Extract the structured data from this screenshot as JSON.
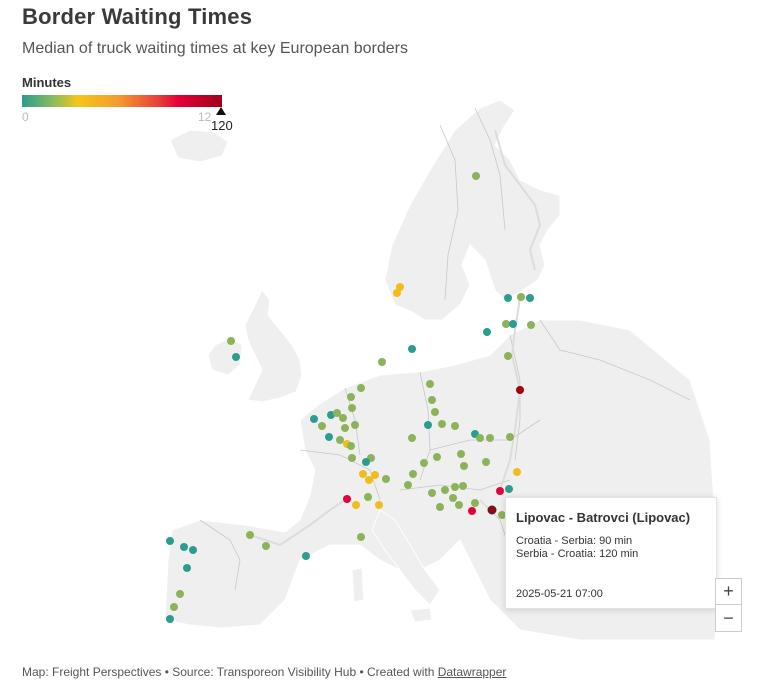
{
  "header": {
    "title": "Border Waiting Times",
    "subtitle": "Median of truck waiting times at key European borders"
  },
  "legend": {
    "title": "Minutes",
    "min_label": "0",
    "max_label_faded": "12",
    "max_label": "120",
    "colors": [
      "#2a9d8f",
      "#8cbd5b",
      "#f5c518",
      "#f39c2f",
      "#e8413a",
      "#e4003a",
      "#a0001a"
    ]
  },
  "map": {
    "land_color": "#efefef",
    "border_color": "#c8c8c8",
    "route_color": "#dcdcdc",
    "marker_colors": {
      "teal": "#2a9d8f",
      "green": "#8cb35a",
      "yellow": "#f0bd1c",
      "red": "#e4003a",
      "darkred": "#a3000f"
    }
  },
  "tooltip": {
    "title": "Lipovac - Batrovci (Lipovac)",
    "line1": "Croatia - Serbia: 90 min",
    "line2": "Serbia - Croatia: 120 min",
    "date": "2025-05-21 07:00"
  },
  "zoom": {
    "in_label": "+",
    "out_label": "−"
  },
  "footer": {
    "prefix": "Map: Freight Perspectives • Source: Transporeon Visibility Hub • Created with ",
    "link": "Datawrapper"
  }
}
